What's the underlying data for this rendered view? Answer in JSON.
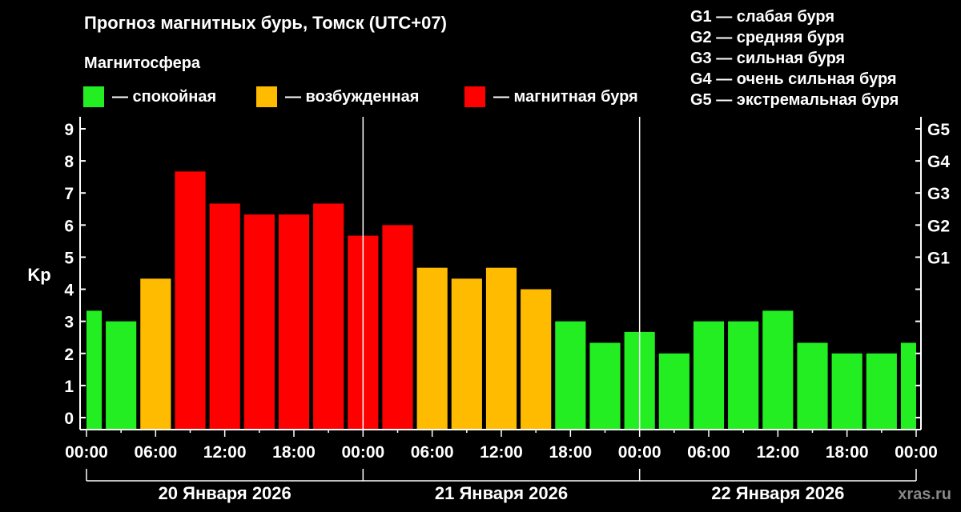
{
  "chart_data": {
    "type": "bar",
    "title": "Прогноз магнитных бурь, Томск (UTC+07)",
    "subtitle": "Магнитосфера",
    "ylabel": "Kp",
    "ylim": [
      0,
      9
    ],
    "y_ticks": [
      "0",
      "1",
      "2",
      "3",
      "4",
      "5",
      "6",
      "7",
      "8",
      "9"
    ],
    "right_ticks": [
      {
        "kp": 5,
        "label": "G1"
      },
      {
        "kp": 6,
        "label": "G2"
      },
      {
        "kp": 7,
        "label": "G3"
      },
      {
        "kp": 8,
        "label": "G4"
      },
      {
        "kp": 9,
        "label": "G5"
      }
    ],
    "x_tick_labels": [
      "00:00",
      "06:00",
      "12:00",
      "18:00",
      "00:00",
      "06:00",
      "12:00",
      "18:00",
      "00:00",
      "06:00",
      "12:00",
      "18:00",
      "00:00"
    ],
    "day_labels": [
      "20 Января 2026",
      "21 Января 2026",
      "22 Января 2026"
    ],
    "values": [
      3.33,
      3.0,
      4.33,
      7.67,
      6.67,
      6.33,
      6.33,
      6.67,
      5.67,
      6.0,
      4.67,
      4.33,
      4.67,
      4.0,
      3.0,
      2.33,
      2.67,
      2.0,
      3.0,
      3.0,
      3.33,
      2.33,
      2.0,
      2.0,
      2.33
    ],
    "categories": [
      "calm",
      "calm",
      "excited",
      "storm",
      "storm",
      "storm",
      "storm",
      "storm",
      "storm",
      "storm",
      "excited",
      "excited",
      "excited",
      "excited",
      "calm",
      "calm",
      "calm",
      "calm",
      "calm",
      "calm",
      "calm",
      "calm",
      "calm",
      "calm",
      "calm"
    ],
    "colors": {
      "calm": "#22ee22",
      "excited": "#ffbb00",
      "storm": "#ff0000"
    },
    "legend": [
      {
        "key": "calm",
        "label": "— спокойная"
      },
      {
        "key": "excited",
        "label": "— возбужденная"
      },
      {
        "key": "storm",
        "label": "— магнитная буря"
      }
    ],
    "storm_levels": [
      "G1 — слабая буря",
      "G2 — средняя буря",
      "G3 — сильная буря",
      "G4 — очень сильная буря",
      "G5 — экстремальная буря"
    ]
  },
  "watermark": "xras.ru"
}
